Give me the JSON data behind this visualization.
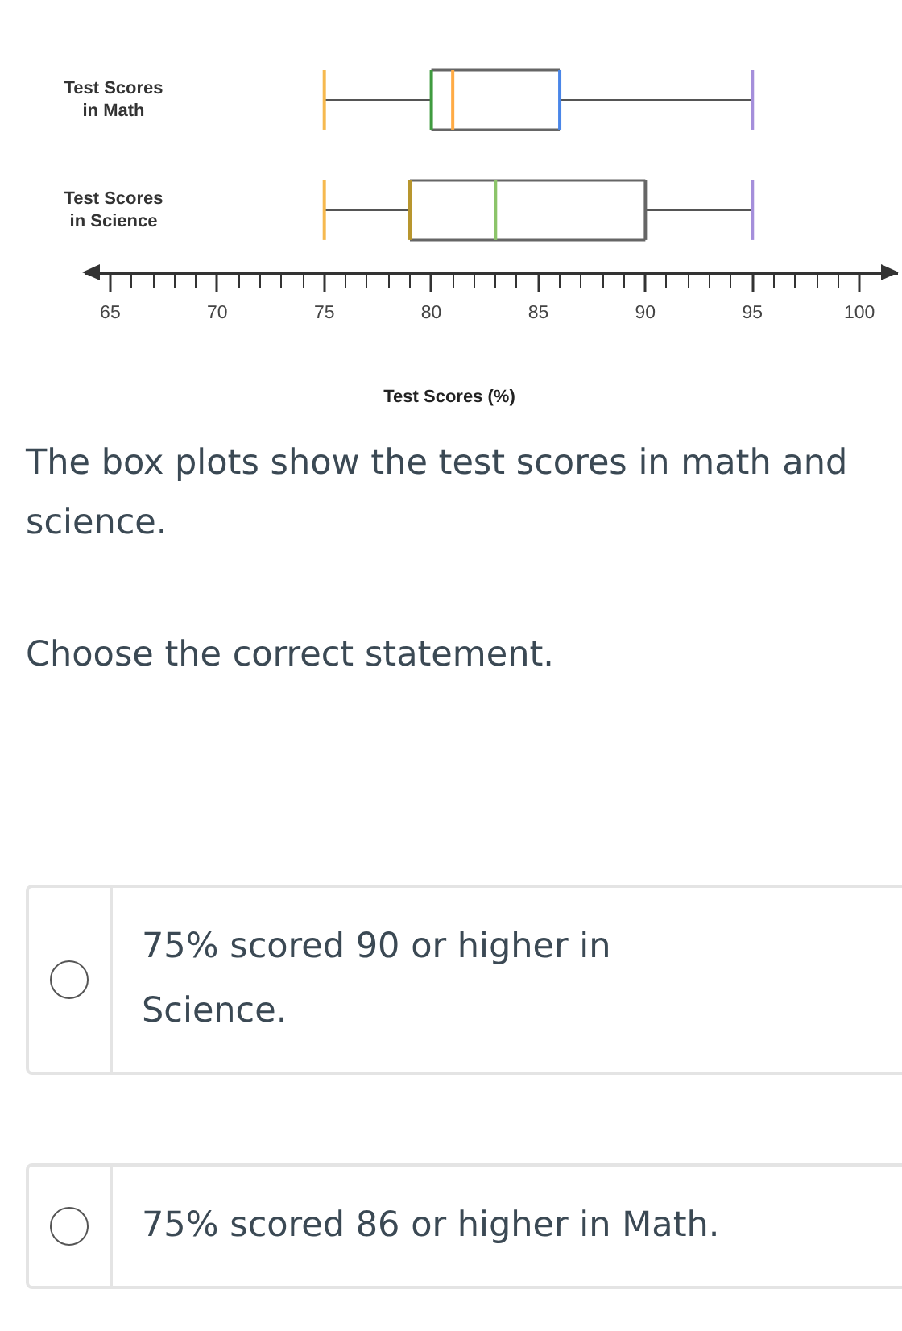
{
  "chart_data": {
    "type": "box",
    "orientation": "horizontal",
    "categories": [
      "Test Scores in Math",
      "Test Scores in Science"
    ],
    "boxes": [
      {
        "low": 75,
        "q1": 80,
        "median": 81,
        "q3": 86,
        "high": 95
      },
      {
        "low": 75,
        "q1": 79,
        "median": 83,
        "q3": 90,
        "high": 95
      }
    ],
    "colors": [
      [
        "#f6b94f",
        "#3f9b3f",
        "#ffab45",
        "#4a86e8",
        "#a58fdb"
      ],
      [
        "#f6b94f",
        "#b8962e",
        "#8cc46a",
        "#666666",
        "#a58fdb"
      ]
    ],
    "xlim": [
      63.8,
      101.8
    ],
    "xticks": [
      65,
      70,
      75,
      80,
      85,
      90,
      95,
      100
    ],
    "xlabel": "Test Scores (%)",
    "annotations": [
      "The box plots show the test scores in math and science.",
      "Choose the correct statement.",
      "75% scored 90 or higher in Science.",
      "75% scored 86 or higher in Math."
    ]
  }
}
